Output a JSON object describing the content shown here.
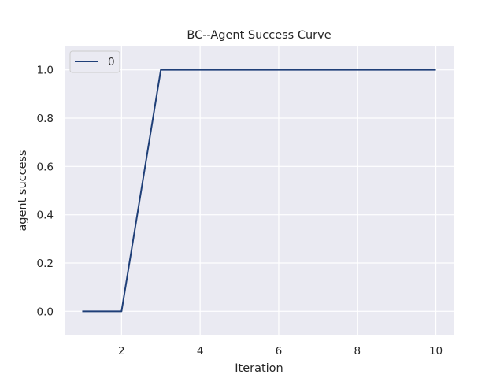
{
  "chart_data": {
    "type": "line",
    "title": "BC--Agent Success Curve",
    "xlabel": "Iteration",
    "ylabel": "agent success",
    "xlim": [
      0.55,
      10.45
    ],
    "ylim": [
      -0.1,
      1.1
    ],
    "xticks": [
      2,
      4,
      6,
      8,
      10
    ],
    "xtick_labels": [
      "2",
      "4",
      "6",
      "8",
      "10"
    ],
    "yticks": [
      0.0,
      0.2,
      0.4,
      0.6,
      0.8,
      1.0
    ],
    "ytick_labels": [
      "0.0",
      "0.2",
      "0.4",
      "0.6",
      "0.8",
      "1.0"
    ],
    "grid": true,
    "legend_position": "top-left",
    "series": [
      {
        "name": "0",
        "color": "#1f3f78",
        "x": [
          1,
          2,
          3,
          4,
          5,
          6,
          7,
          8,
          9,
          10
        ],
        "y": [
          0.0,
          0.0,
          1.0,
          1.0,
          1.0,
          1.0,
          1.0,
          1.0,
          1.0,
          1.0
        ]
      }
    ]
  },
  "colors": {
    "plot_background": "#eaeaf2",
    "grid": "#ffffff"
  }
}
